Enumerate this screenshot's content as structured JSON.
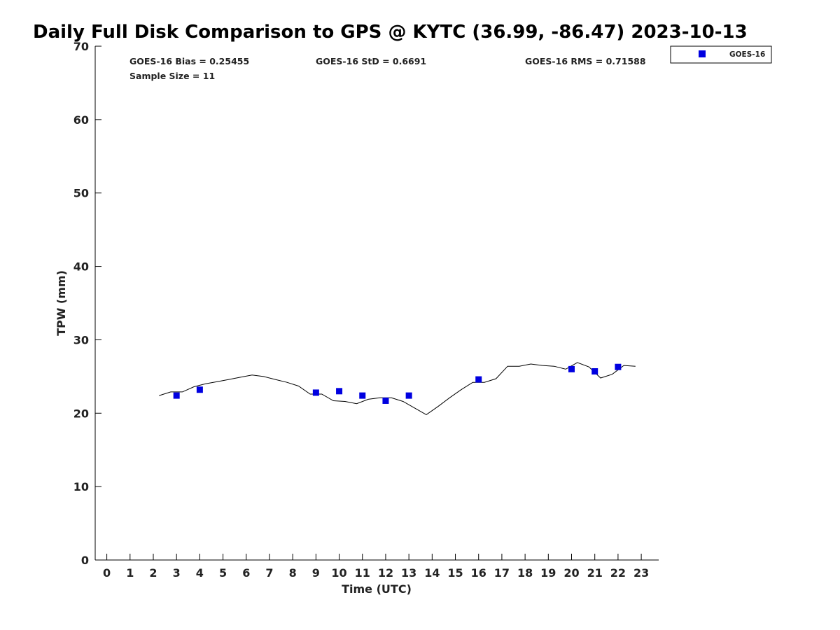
{
  "chart_data": {
    "type": "scatter",
    "title": "Daily Full Disk Comparison to GPS @ KYTC (36.99, -86.47) 2023-10-13",
    "xlabel": "Time (UTC)",
    "ylabel": "TPW (mm)",
    "xlim": [
      -0.5,
      23.75
    ],
    "ylim": [
      0,
      70
    ],
    "x_ticks": [
      0,
      1,
      2,
      3,
      4,
      5,
      6,
      7,
      8,
      9,
      10,
      11,
      12,
      13,
      14,
      15,
      16,
      17,
      18,
      19,
      20,
      21,
      22,
      23
    ],
    "y_ticks": [
      0,
      10,
      20,
      30,
      40,
      50,
      60,
      70
    ],
    "grid": false,
    "legend_position": "top-right, outside plot",
    "stats": {
      "bias": "GOES-16 Bias = 0.25455",
      "std": "GOES-16 StD = 0.6691",
      "rms": "GOES-16 RMS = 0.71588",
      "sample_size": "Sample Size = 11"
    },
    "series": [
      {
        "name": "GOES-16",
        "kind": "scatter",
        "marker": "square",
        "color": "#0000e0",
        "x": [
          3,
          4,
          9,
          10,
          11,
          12,
          13,
          16,
          20,
          21,
          22
        ],
        "y": [
          22.4,
          23.2,
          22.8,
          23.0,
          22.4,
          21.7,
          22.4,
          24.6,
          26.0,
          25.7,
          26.3
        ]
      },
      {
        "kind": "line",
        "color": "#000000",
        "x": [
          2.25,
          2.75,
          3.25,
          3.75,
          4.25,
          4.75,
          5.25,
          5.75,
          6.25,
          6.75,
          7.25,
          7.75,
          8.25,
          8.75,
          9.25,
          9.75,
          10.25,
          10.75,
          11.25,
          11.75,
          12.25,
          12.75,
          13.25,
          13.75,
          14.25,
          14.75,
          15.25,
          15.75,
          16.25,
          16.75,
          17.25,
          17.75,
          18.25,
          18.75,
          19.25,
          19.75,
          20.25,
          20.75,
          21.25,
          21.75,
          22.25,
          22.75
        ],
        "y": [
          22.4,
          22.9,
          22.9,
          23.6,
          24.0,
          24.3,
          24.6,
          24.9,
          25.2,
          25.0,
          24.6,
          24.2,
          23.7,
          22.6,
          22.6,
          21.7,
          21.6,
          21.3,
          21.9,
          22.1,
          22.1,
          21.6,
          20.7,
          19.8,
          20.9,
          22.1,
          23.2,
          24.2,
          24.2,
          24.7,
          26.4,
          26.4,
          26.7,
          26.5,
          26.4,
          26.0,
          26.9,
          26.3,
          24.8,
          25.3,
          26.5,
          26.4
        ]
      }
    ]
  }
}
